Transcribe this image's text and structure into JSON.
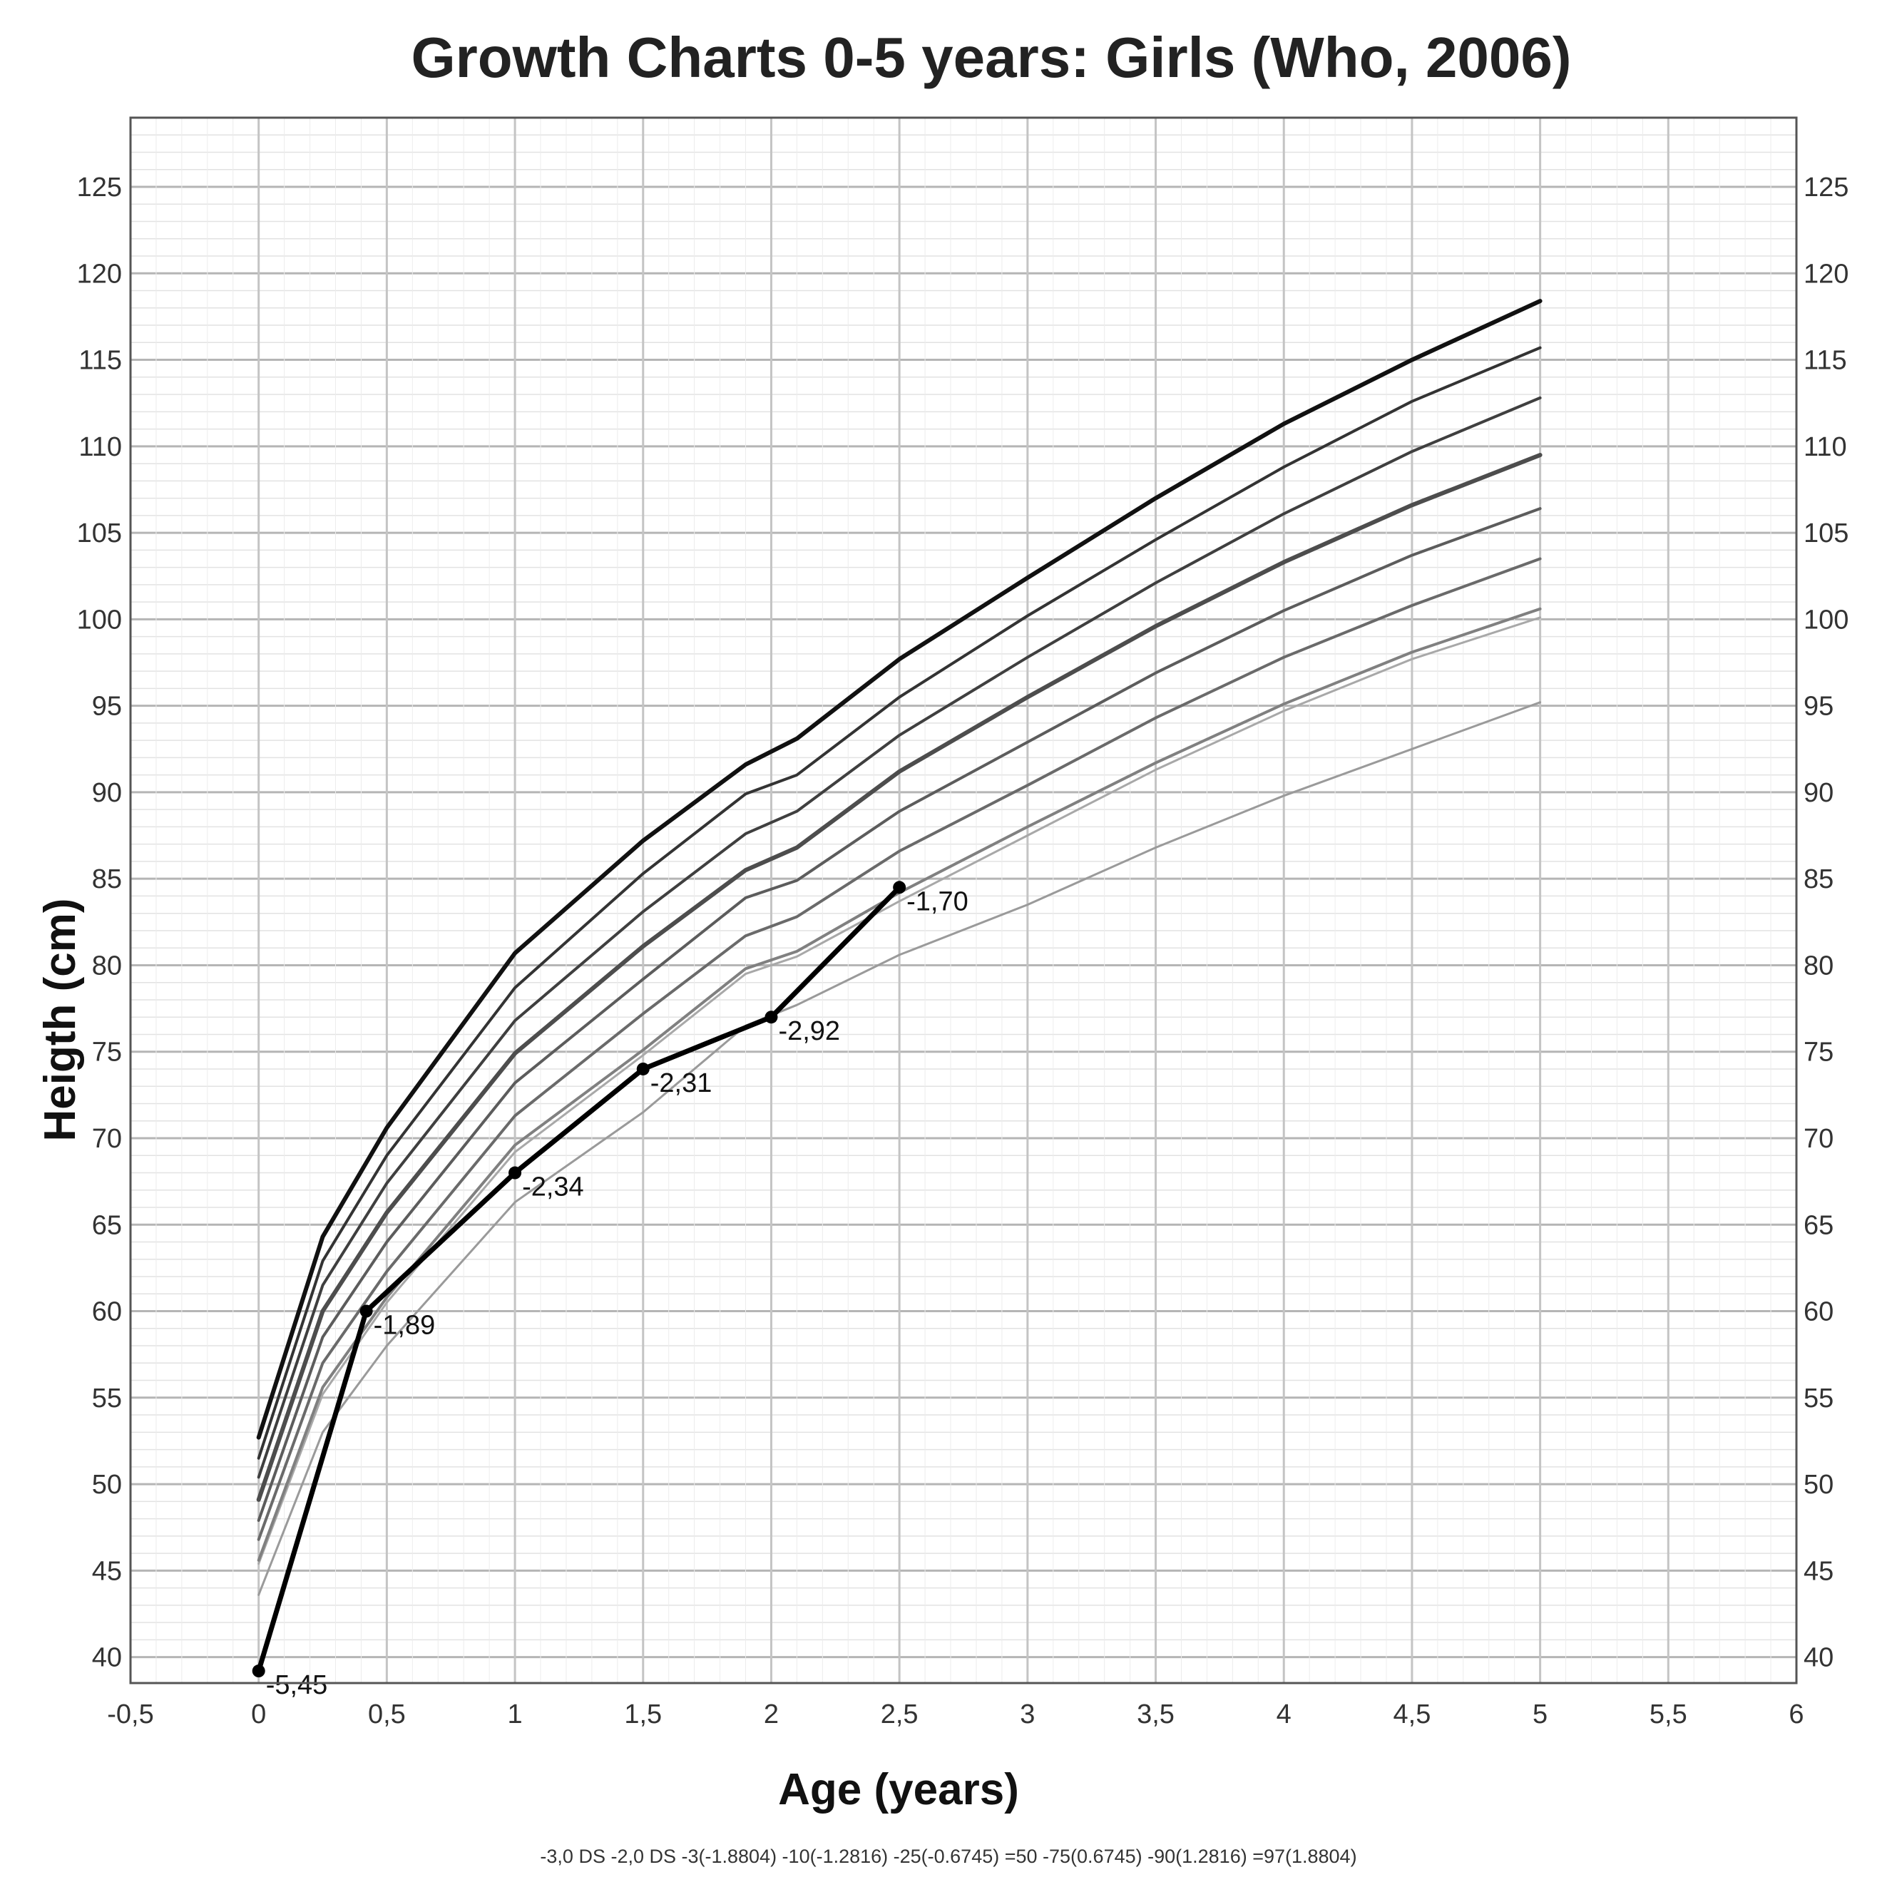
{
  "chart_data": {
    "type": "line",
    "title": "Growth Charts 0-5 years: Girls  (Who, 2006)",
    "xlabel": "Age  (years)",
    "ylabel": "Heigth (cm)",
    "xlim": [
      -0.5,
      6
    ],
    "ylim": [
      38.5,
      129
    ],
    "x_tick_labels": [
      "-0,5",
      "0",
      "0,5",
      "1",
      "1,5",
      "2",
      "2,5",
      "3",
      "3,5",
      "4",
      "4,5",
      "5",
      "5,5",
      "6"
    ],
    "y_tick_labels": [
      "40",
      "45",
      "50",
      "55",
      "60",
      "65",
      "70",
      "75",
      "80",
      "85",
      "90",
      "95",
      "100",
      "105",
      "110",
      "115",
      "120",
      "125"
    ],
    "legend_text": "-3,0 DS -2,0 DS -3(-1.8804) -10(-1.2816) -25(-0.6745) =50 -75(0.6745) -90(1.2816) =97(1.8804)",
    "x": [
      0,
      0.25,
      0.5,
      1,
      1.5,
      1.9,
      2.1,
      2.5,
      3,
      3.5,
      4,
      4.5,
      5
    ],
    "series": [
      {
        "name": "-3,0 DS",
        "color": "#9a9a9a",
        "width": 3,
        "values": [
          43.6,
          53.0,
          58.0,
          66.3,
          71.5,
          76.5,
          77.7,
          80.6,
          83.5,
          86.8,
          89.8,
          92.5,
          95.2
        ]
      },
      {
        "name": "-2,0 DS",
        "color": "#a8a8a8",
        "width": 3,
        "values": [
          45.4,
          55.2,
          60.5,
          69.2,
          74.8,
          79.5,
          80.5,
          83.7,
          87.5,
          91.3,
          94.7,
          97.7,
          100.1
        ]
      },
      {
        "name": "3(-1.8804)",
        "color": "#808080",
        "width": 4,
        "values": [
          45.6,
          55.6,
          60.8,
          69.6,
          75.1,
          79.8,
          80.8,
          84.2,
          88.0,
          91.7,
          95.1,
          98.1,
          100.6
        ]
      },
      {
        "name": "10(-1.2816)",
        "color": "#6a6a6a",
        "width": 4,
        "values": [
          46.8,
          57.0,
          62.3,
          71.3,
          77.2,
          81.7,
          82.8,
          86.6,
          90.4,
          94.3,
          97.8,
          100.8,
          103.5
        ]
      },
      {
        "name": "25(-0.6745)",
        "color": "#5c5c5c",
        "width": 4,
        "values": [
          47.9,
          58.5,
          64.0,
          73.2,
          79.2,
          83.9,
          84.9,
          88.9,
          92.9,
          96.9,
          100.5,
          103.7,
          106.4
        ]
      },
      {
        "name": "50",
        "color": "#4d4d4d",
        "width": 6,
        "values": [
          49.1,
          60.0,
          65.7,
          74.9,
          81.1,
          85.5,
          86.8,
          91.2,
          95.5,
          99.6,
          103.3,
          106.6,
          109.5
        ]
      },
      {
        "name": "75(0.6745)",
        "color": "#3f3f3f",
        "width": 4,
        "values": [
          50.4,
          61.5,
          67.4,
          76.8,
          83.1,
          87.6,
          88.9,
          93.3,
          97.8,
          102.1,
          106.1,
          109.7,
          112.8
        ]
      },
      {
        "name": "90(1.2816)",
        "color": "#333333",
        "width": 4,
        "values": [
          51.5,
          62.9,
          69.0,
          78.7,
          85.3,
          89.9,
          91.0,
          95.5,
          100.2,
          104.6,
          108.8,
          112.6,
          115.7
        ]
      },
      {
        "name": "97(1.8804)",
        "color": "#111111",
        "width": 6,
        "values": [
          52.7,
          64.3,
          70.6,
          80.7,
          87.2,
          91.6,
          93.1,
          97.7,
          102.4,
          107.0,
          111.3,
          115.0,
          118.4
        ]
      }
    ],
    "patient": {
      "name": "patient",
      "color": "#000000",
      "points": [
        {
          "x": 0,
          "y": 39.2,
          "label": "-5,45"
        },
        {
          "x": 0.42,
          "y": 60.0,
          "label": "-1,89"
        },
        {
          "x": 1,
          "y": 68.0,
          "label": "-2,34"
        },
        {
          "x": 1.5,
          "y": 74.0,
          "label": "-2,31"
        },
        {
          "x": 2,
          "y": 77.0,
          "label": "-2,92"
        },
        {
          "x": 2.5,
          "y": 84.5,
          "label": "-1,70"
        }
      ]
    }
  }
}
